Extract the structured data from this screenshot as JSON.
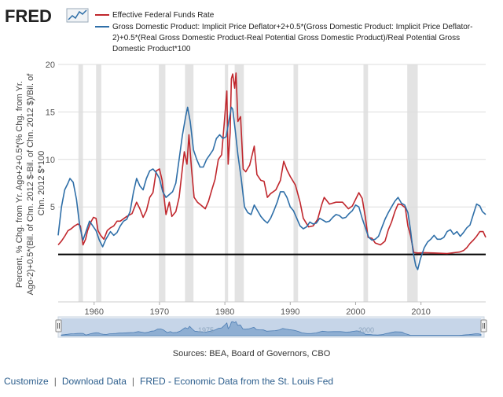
{
  "brand": {
    "logo_text": "FRED"
  },
  "chart_data": {
    "type": "line",
    "title": "",
    "ylabel": "Percent, % Chg. from Yr. Ago+2+0.5*(% Chg. from Yr. Ago-2)+0.5*(Bil. of Chn. 2012 $-Bil. of Chn. 2012 $)/Bil. of Chn. 2012 $*100",
    "xlim": [
      1954.5,
      2019.9
    ],
    "ylim": [
      -5,
      20
    ],
    "x_ticks": [
      1960,
      1970,
      1980,
      1990,
      2000,
      2010
    ],
    "y_ticks": [
      5,
      10,
      15,
      20
    ],
    "grid": "horizontal",
    "legend_position": "top-left",
    "reference_line": 0,
    "recessions": [
      [
        1957.6,
        1958.3
      ],
      [
        1960.3,
        1961.1
      ],
      [
        1969.9,
        1970.9
      ],
      [
        1973.9,
        1975.2
      ],
      [
        1980.0,
        1980.5
      ],
      [
        1981.5,
        1982.9
      ],
      [
        1990.5,
        1991.2
      ],
      [
        2001.2,
        2001.9
      ],
      [
        2007.9,
        2009.5
      ]
    ],
    "series": [
      {
        "name": "Effective Federal Funds Rate",
        "color": "#c0272d",
        "points": [
          [
            1954.5,
            1.0
          ],
          [
            1955.0,
            1.4
          ],
          [
            1955.5,
            1.9
          ],
          [
            1956.0,
            2.5
          ],
          [
            1956.5,
            2.7
          ],
          [
            1957.0,
            3.0
          ],
          [
            1957.5,
            3.2
          ],
          [
            1957.9,
            3.0
          ],
          [
            1958.3,
            1.0
          ],
          [
            1958.7,
            1.6
          ],
          [
            1959.0,
            2.5
          ],
          [
            1959.5,
            3.4
          ],
          [
            1959.9,
            3.9
          ],
          [
            1960.3,
            3.8
          ],
          [
            1960.6,
            2.5
          ],
          [
            1961.0,
            2.0
          ],
          [
            1961.5,
            1.6
          ],
          [
            1962.0,
            2.5
          ],
          [
            1962.5,
            2.8
          ],
          [
            1963.0,
            3.0
          ],
          [
            1963.5,
            3.5
          ],
          [
            1964.0,
            3.5
          ],
          [
            1965.0,
            4.0
          ],
          [
            1965.8,
            4.3
          ],
          [
            1966.5,
            5.5
          ],
          [
            1967.0,
            4.8
          ],
          [
            1967.5,
            3.9
          ],
          [
            1968.0,
            4.6
          ],
          [
            1968.5,
            6.0
          ],
          [
            1969.0,
            6.5
          ],
          [
            1969.5,
            8.8
          ],
          [
            1970.0,
            9.0
          ],
          [
            1970.4,
            7.8
          ],
          [
            1971.0,
            4.2
          ],
          [
            1971.5,
            5.5
          ],
          [
            1971.9,
            4.0
          ],
          [
            1972.5,
            4.5
          ],
          [
            1973.0,
            6.0
          ],
          [
            1973.5,
            9.0
          ],
          [
            1973.8,
            10.8
          ],
          [
            1974.2,
            9.5
          ],
          [
            1974.5,
            12.6
          ],
          [
            1974.9,
            9.0
          ],
          [
            1975.3,
            6.0
          ],
          [
            1975.8,
            5.5
          ],
          [
            1976.5,
            5.1
          ],
          [
            1977.0,
            4.8
          ],
          [
            1977.5,
            5.6
          ],
          [
            1978.0,
            6.8
          ],
          [
            1978.5,
            7.9
          ],
          [
            1979.0,
            10.0
          ],
          [
            1979.5,
            10.5
          ],
          [
            1979.9,
            13.8
          ],
          [
            1980.3,
            17.2
          ],
          [
            1980.5,
            9.5
          ],
          [
            1980.8,
            12.8
          ],
          [
            1981.0,
            18.5
          ],
          [
            1981.2,
            19.0
          ],
          [
            1981.5,
            17.5
          ],
          [
            1981.7,
            19.1
          ],
          [
            1982.0,
            14.0
          ],
          [
            1982.4,
            14.5
          ],
          [
            1982.8,
            9.0
          ],
          [
            1983.2,
            8.7
          ],
          [
            1983.8,
            9.4
          ],
          [
            1984.5,
            11.4
          ],
          [
            1984.9,
            8.4
          ],
          [
            1985.5,
            7.8
          ],
          [
            1986.0,
            7.7
          ],
          [
            1986.5,
            6.0
          ],
          [
            1987.0,
            6.4
          ],
          [
            1987.8,
            6.8
          ],
          [
            1988.5,
            7.8
          ],
          [
            1989.0,
            9.8
          ],
          [
            1989.5,
            8.9
          ],
          [
            1990.0,
            8.2
          ],
          [
            1990.8,
            7.3
          ],
          [
            1991.5,
            5.5
          ],
          [
            1992.0,
            3.8
          ],
          [
            1992.8,
            2.9
          ],
          [
            1993.5,
            3.0
          ],
          [
            1994.2,
            3.7
          ],
          [
            1994.8,
            5.2
          ],
          [
            1995.2,
            6.0
          ],
          [
            1996.0,
            5.3
          ],
          [
            1997.0,
            5.5
          ],
          [
            1998.0,
            5.5
          ],
          [
            1998.9,
            4.8
          ],
          [
            1999.5,
            5.1
          ],
          [
            2000.0,
            5.8
          ],
          [
            2000.5,
            6.5
          ],
          [
            2001.0,
            5.9
          ],
          [
            2001.5,
            3.9
          ],
          [
            2001.9,
            1.8
          ],
          [
            2002.5,
            1.7
          ],
          [
            2003.0,
            1.2
          ],
          [
            2003.8,
            1.0
          ],
          [
            2004.5,
            1.4
          ],
          [
            2005.0,
            2.6
          ],
          [
            2005.5,
            3.4
          ],
          [
            2006.0,
            4.5
          ],
          [
            2006.5,
            5.3
          ],
          [
            2007.0,
            5.25
          ],
          [
            2007.6,
            4.9
          ],
          [
            2008.0,
            3.0
          ],
          [
            2008.4,
            2.0
          ],
          [
            2008.9,
            0.2
          ],
          [
            2009.5,
            0.15
          ],
          [
            2010.5,
            0.18
          ],
          [
            2012.0,
            0.15
          ],
          [
            2014.0,
            0.09
          ],
          [
            2015.9,
            0.25
          ],
          [
            2016.5,
            0.4
          ],
          [
            2017.0,
            0.7
          ],
          [
            2017.5,
            1.15
          ],
          [
            2018.0,
            1.5
          ],
          [
            2018.5,
            1.9
          ],
          [
            2019.0,
            2.4
          ],
          [
            2019.5,
            2.4
          ],
          [
            2019.9,
            1.8
          ]
        ]
      },
      {
        "name": "Gross Domestic Product: Implicit Price Deflator+2+0.5*(Gross Domestic Product: Implicit Price Deflator-2)+0.5*(Real Gross Domestic Product-Real Potential Gross Domestic Product)/Real Potential Gross Domestic Product*100",
        "color": "#2f6fa8",
        "points": [
          [
            1954.5,
            2.0
          ],
          [
            1955.0,
            5.0
          ],
          [
            1955.5,
            6.8
          ],
          [
            1956.0,
            7.5
          ],
          [
            1956.3,
            8.0
          ],
          [
            1956.8,
            7.6
          ],
          [
            1957.3,
            5.8
          ],
          [
            1957.8,
            3.0
          ],
          [
            1958.3,
            1.5
          ],
          [
            1958.8,
            2.5
          ],
          [
            1959.3,
            3.5
          ],
          [
            1959.8,
            3.0
          ],
          [
            1960.3,
            2.5
          ],
          [
            1960.8,
            1.5
          ],
          [
            1961.3,
            0.8
          ],
          [
            1961.8,
            1.6
          ],
          [
            1962.5,
            2.4
          ],
          [
            1963.0,
            2.0
          ],
          [
            1963.5,
            2.3
          ],
          [
            1964.0,
            3.0
          ],
          [
            1964.5,
            3.5
          ],
          [
            1965.0,
            3.7
          ],
          [
            1965.5,
            4.5
          ],
          [
            1966.0,
            6.5
          ],
          [
            1966.5,
            8.0
          ],
          [
            1967.0,
            7.2
          ],
          [
            1967.5,
            6.8
          ],
          [
            1968.0,
            8.0
          ],
          [
            1968.5,
            8.8
          ],
          [
            1969.0,
            9.0
          ],
          [
            1969.5,
            8.6
          ],
          [
            1970.0,
            8.0
          ],
          [
            1970.5,
            6.6
          ],
          [
            1971.0,
            6.0
          ],
          [
            1971.5,
            6.3
          ],
          [
            1972.0,
            6.6
          ],
          [
            1972.5,
            7.5
          ],
          [
            1973.0,
            10.0
          ],
          [
            1973.5,
            12.5
          ],
          [
            1974.0,
            14.5
          ],
          [
            1974.3,
            15.5
          ],
          [
            1974.7,
            14.0
          ],
          [
            1975.2,
            11.0
          ],
          [
            1975.7,
            10.0
          ],
          [
            1976.2,
            9.2
          ],
          [
            1976.7,
            9.2
          ],
          [
            1977.2,
            10.0
          ],
          [
            1977.7,
            10.5
          ],
          [
            1978.2,
            11.0
          ],
          [
            1978.7,
            12.2
          ],
          [
            1979.2,
            12.6
          ],
          [
            1979.7,
            12.2
          ],
          [
            1980.2,
            12.4
          ],
          [
            1980.6,
            14.0
          ],
          [
            1981.0,
            15.5
          ],
          [
            1981.2,
            15.3
          ],
          [
            1981.6,
            13.0
          ],
          [
            1982.0,
            10.5
          ],
          [
            1982.5,
            8.0
          ],
          [
            1983.0,
            5.0
          ],
          [
            1983.5,
            4.4
          ],
          [
            1984.0,
            4.2
          ],
          [
            1984.5,
            5.2
          ],
          [
            1985.0,
            4.6
          ],
          [
            1985.5,
            4.0
          ],
          [
            1986.0,
            3.6
          ],
          [
            1986.5,
            3.3
          ],
          [
            1987.0,
            3.8
          ],
          [
            1987.5,
            4.6
          ],
          [
            1988.0,
            5.5
          ],
          [
            1988.5,
            6.6
          ],
          [
            1989.0,
            6.6
          ],
          [
            1989.5,
            6.0
          ],
          [
            1990.0,
            5.0
          ],
          [
            1990.5,
            4.6
          ],
          [
            1991.0,
            3.8
          ],
          [
            1991.5,
            3.0
          ],
          [
            1992.0,
            2.7
          ],
          [
            1992.5,
            2.9
          ],
          [
            1993.0,
            3.4
          ],
          [
            1993.5,
            3.2
          ],
          [
            1994.0,
            3.3
          ],
          [
            1994.5,
            3.8
          ],
          [
            1995.0,
            3.6
          ],
          [
            1995.5,
            3.4
          ],
          [
            1996.0,
            3.5
          ],
          [
            1996.5,
            3.9
          ],
          [
            1997.0,
            4.2
          ],
          [
            1997.5,
            4.1
          ],
          [
            1998.0,
            3.8
          ],
          [
            1998.5,
            3.9
          ],
          [
            1999.0,
            4.3
          ],
          [
            1999.5,
            4.6
          ],
          [
            2000.0,
            5.2
          ],
          [
            2000.5,
            5.0
          ],
          [
            2001.0,
            3.8
          ],
          [
            2001.5,
            2.8
          ],
          [
            2002.0,
            1.8
          ],
          [
            2002.5,
            1.5
          ],
          [
            2003.0,
            1.6
          ],
          [
            2003.5,
            1.9
          ],
          [
            2004.0,
            2.8
          ],
          [
            2004.5,
            3.7
          ],
          [
            2005.0,
            4.4
          ],
          [
            2005.5,
            5.0
          ],
          [
            2006.0,
            5.6
          ],
          [
            2006.5,
            6.0
          ],
          [
            2007.0,
            5.4
          ],
          [
            2007.5,
            5.2
          ],
          [
            2008.0,
            4.4
          ],
          [
            2008.4,
            2.6
          ],
          [
            2008.8,
            0.2
          ],
          [
            2009.2,
            -1.2
          ],
          [
            2009.5,
            -1.6
          ],
          [
            2009.9,
            -0.5
          ],
          [
            2010.5,
            0.7
          ],
          [
            2011.0,
            1.3
          ],
          [
            2011.5,
            1.6
          ],
          [
            2012.0,
            2.0
          ],
          [
            2012.5,
            1.6
          ],
          [
            2013.0,
            1.6
          ],
          [
            2013.5,
            1.8
          ],
          [
            2014.0,
            2.4
          ],
          [
            2014.5,
            2.6
          ],
          [
            2015.0,
            2.1
          ],
          [
            2015.5,
            2.4
          ],
          [
            2016.0,
            1.9
          ],
          [
            2016.5,
            2.3
          ],
          [
            2017.0,
            2.8
          ],
          [
            2017.5,
            3.1
          ],
          [
            2018.0,
            4.2
          ],
          [
            2018.5,
            5.3
          ],
          [
            2019.0,
            5.1
          ],
          [
            2019.4,
            4.5
          ],
          [
            2019.9,
            4.2
          ]
        ]
      }
    ]
  },
  "navigator": {
    "labels": [
      "1975",
      "2000"
    ]
  },
  "source_text": "Sources: BEA, Board of Governors, CBO",
  "footer": {
    "customize": "Customize",
    "separator": "|",
    "download": "Download Data",
    "fred_link": "FRED - Economic Data from the St. Louis Fed"
  }
}
